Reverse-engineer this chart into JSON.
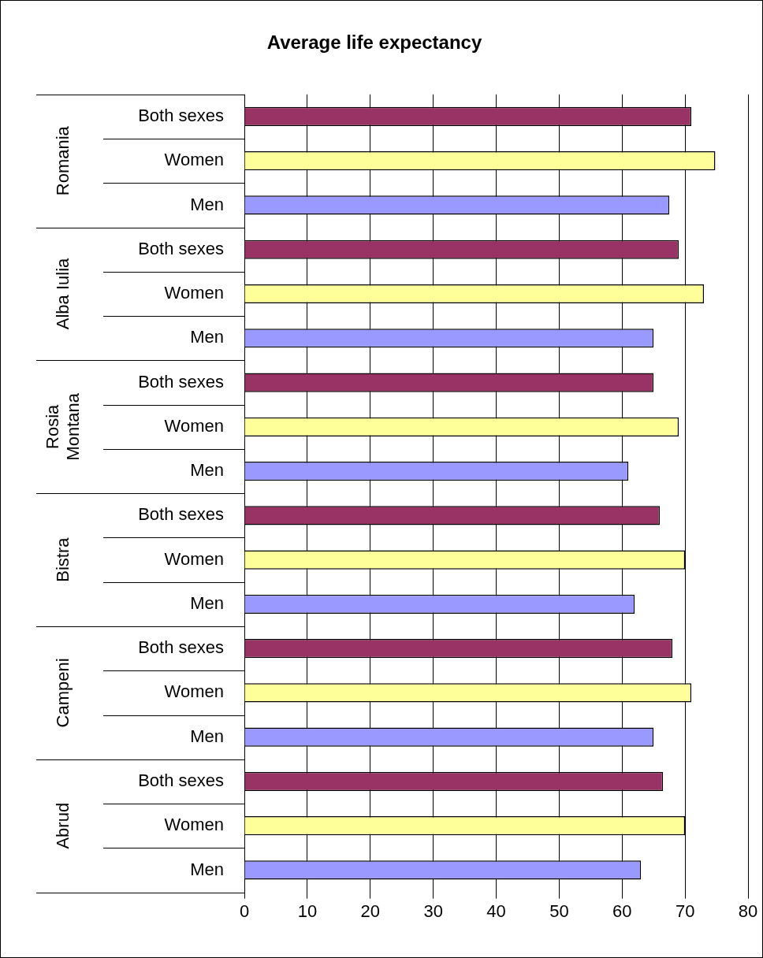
{
  "chart_data": {
    "type": "bar",
    "orientation": "horizontal",
    "title": "Average life expectancy",
    "categories": [
      "Both sexes",
      "Women",
      "Men",
      "Both sexes",
      "Women",
      "Men",
      "Both sexes",
      "Women",
      "Men",
      "Both sexes",
      "Women",
      "Men",
      "Both sexes",
      "Women",
      "Men",
      "Both sexes",
      "Women",
      "Men"
    ],
    "values": [
      71,
      74.8,
      67.5,
      69,
      73,
      65,
      65,
      69,
      61,
      66,
      70,
      62,
      68,
      71,
      65,
      66.5,
      70,
      63
    ],
    "colors": [
      "#993366",
      "#ffff99",
      "#9999ff",
      "#993366",
      "#ffff99",
      "#9999ff",
      "#993366",
      "#ffff99",
      "#9999ff",
      "#993366",
      "#ffff99",
      "#9999ff",
      "#993366",
      "#ffff99",
      "#9999ff",
      "#993366",
      "#ffff99",
      "#9999ff"
    ],
    "annotations": [
      "Romania",
      "Alba Iulia",
      "Rosia Montana",
      "Bistra",
      "Campeni",
      "Abrud"
    ],
    "xlim": [
      0,
      80
    ],
    "xticks": [
      0,
      10,
      20,
      30,
      40,
      50,
      60,
      70,
      80
    ],
    "grid": "x",
    "legend": false
  }
}
